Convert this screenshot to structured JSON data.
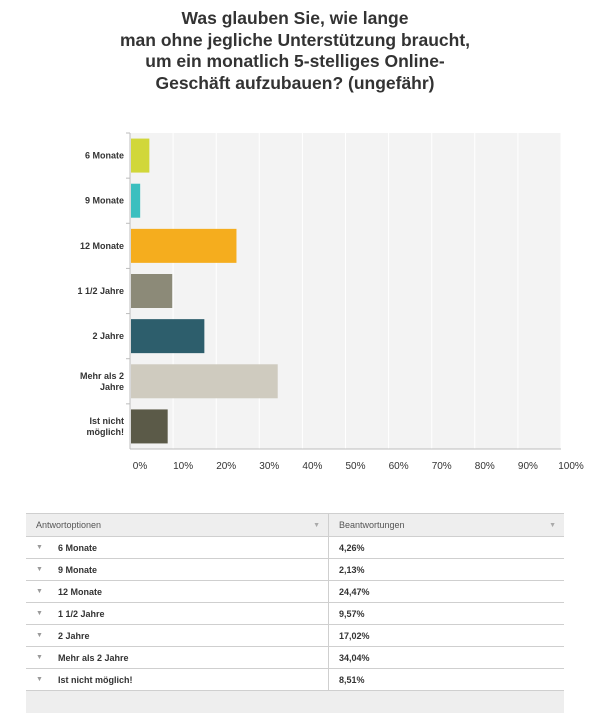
{
  "title_lines": [
    "Was glauben Sie, wie lange",
    "man ohne jegliche Unterstützung braucht,",
    "um ein monatlich 5-stelliges Online-",
    "Geschäft aufzubauen? (ungefähr)"
  ],
  "chart_data": {
    "type": "bar",
    "orientation": "horizontal",
    "title": "Was glauben Sie, wie lange man ohne jegliche Unterstützung braucht, um ein monatlich 5-stelliges Online-Geschäft aufzubauen? (ungefähr)",
    "categories": [
      [
        "6 Monate"
      ],
      [
        "9 Monate"
      ],
      [
        "12 Monate"
      ],
      [
        "1 1/2 Jahre"
      ],
      [
        "2 Jahre"
      ],
      [
        "Mehr als 2",
        "Jahre"
      ],
      [
        "Ist nicht",
        "möglich!"
      ]
    ],
    "values": [
      4.26,
      2.13,
      24.47,
      9.57,
      17.02,
      34.04,
      8.51
    ],
    "colors": [
      "#d1d73a",
      "#3bbfbf",
      "#f5ad1e",
      "#8c8a78",
      "#2d5e6c",
      "#cfcbbf",
      "#5b5a48"
    ],
    "xlim": [
      0,
      100
    ],
    "xticks": [
      "0%",
      "10%",
      "20%",
      "30%",
      "40%",
      "50%",
      "60%",
      "70%",
      "80%",
      "90%",
      "100%"
    ],
    "grid": true
  },
  "table": {
    "header": {
      "options": "Antwortoptionen",
      "responses": "Beantwortungen",
      "sort_icon": "▼"
    },
    "row_icon": "▼",
    "rows": [
      {
        "label": "6 Monate",
        "value": "4,26%"
      },
      {
        "label": "9 Monate",
        "value": "2,13%"
      },
      {
        "label": "12 Monate",
        "value": "24,47%"
      },
      {
        "label": "1 1/2 Jahre",
        "value": "9,57%"
      },
      {
        "label": "2 Jahre",
        "value": "17,02%"
      },
      {
        "label": "Mehr als 2 Jahre",
        "value": "34,04%"
      },
      {
        "label": "Ist nicht möglich!",
        "value": "8,51%"
      }
    ]
  }
}
